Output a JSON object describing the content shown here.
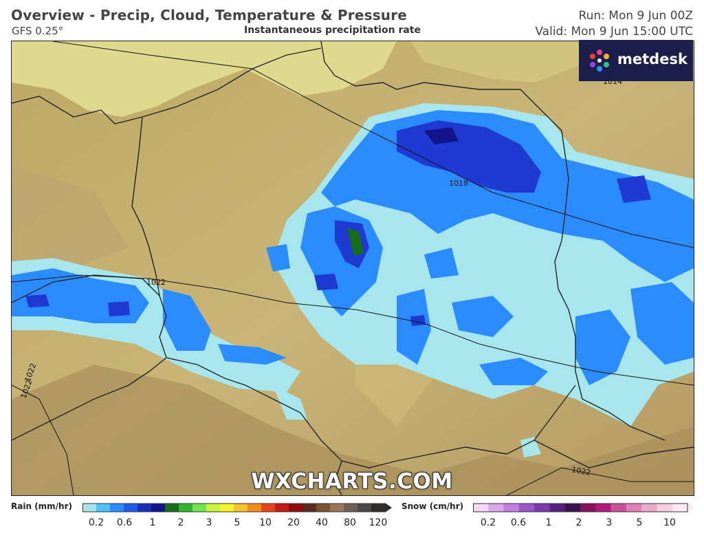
{
  "header": {
    "title": "Overview - Precip, Cloud, Temperature & Pressure",
    "model": "GFS 0.25°",
    "subtitle": "Instantaneous precipitation rate",
    "run": "Run: Mon 9 Jun 00Z",
    "valid": "Valid: Mon 9 Jun 15:00 UTC"
  },
  "logo": {
    "text": "metdesk"
  },
  "watermark": "WXCHARTS.COM",
  "isobars": [
    "1014",
    "1018",
    "1022",
    "1022",
    "1022",
    "1022"
  ],
  "legend": {
    "rain": {
      "label": "Rain (mm/hr)",
      "ticks": [
        "0.2",
        "0.6",
        "1",
        "2",
        "3",
        "5",
        "10",
        "20",
        "40",
        "80",
        "120"
      ],
      "colors": [
        "#a8e6ee",
        "#4cc2ff",
        "#2b8cff",
        "#1f5be6",
        "#1b2fb8",
        "#13138a",
        "#166d1a",
        "#2fb52f",
        "#73e34a",
        "#c9f23b",
        "#f6f32a",
        "#f6c12b",
        "#f58a1e",
        "#e8461a",
        "#c61a14",
        "#8e0c0c",
        "#5e2a1c",
        "#7a5033",
        "#9a7656",
        "#6e6058",
        "#4d4846",
        "#2e2c2c"
      ]
    },
    "snow": {
      "label": "Snow (cm/hr)",
      "ticks": [
        "0.2",
        "0.6",
        "1",
        "2",
        "3",
        "5",
        "10"
      ],
      "colors": [
        "#f3d6f5",
        "#dca6ea",
        "#c27de0",
        "#9b56cc",
        "#7a3aae",
        "#5a2080",
        "#3a1450",
        "#8a1060",
        "#b41a7e",
        "#cc4f99",
        "#dd80b5",
        "#e9a9cd",
        "#f3cfe2",
        "#fbeaf3"
      ]
    }
  }
}
